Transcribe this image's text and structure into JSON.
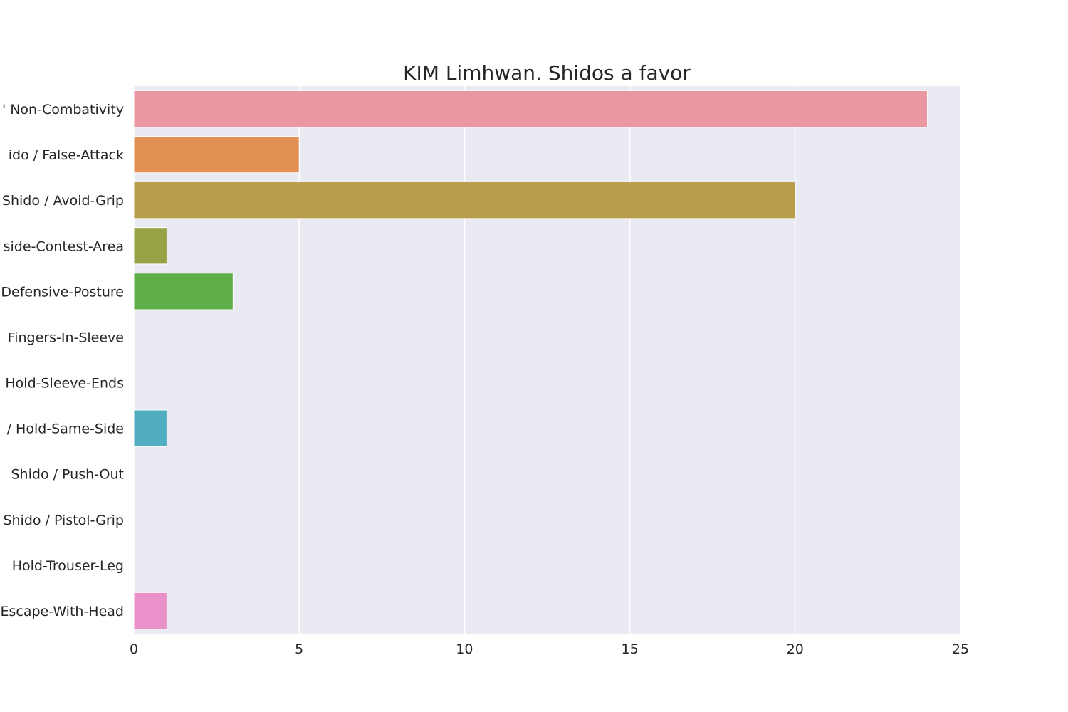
{
  "chart_data": {
    "type": "bar",
    "orientation": "horizontal",
    "title": "KIM Limhwan. Shidos a favor",
    "xlabel": "",
    "ylabel": "",
    "xlim": [
      0,
      25
    ],
    "x_ticks": [
      0,
      5,
      10,
      15,
      20,
      25
    ],
    "grid": true,
    "categories": [
      "Shido / Non-Combativity",
      "Shido / False-Attack",
      "Shido / Avoid-Grip",
      "Shido / Outside-Contest-Area",
      "Shido / Defensive-Posture",
      "Shido / Fingers-In-Sleeve",
      "Shido / Hold-Sleeve-Ends",
      "Shido / Hold-Same-Side",
      "Shido / Push-Out",
      "Shido / Pistol-Grip",
      "Shido / Hold-Trouser-Leg",
      "Shido / Escape-With-Head"
    ],
    "category_labels_visible": [
      "' Non-Combativity",
      "ido / False-Attack",
      "Shido / Avoid-Grip",
      "side-Contest-Area",
      "Defensive-Posture",
      "Fingers-In-Sleeve",
      "Hold-Sleeve-Ends",
      "/ Hold-Same-Side",
      "Shido / Push-Out",
      "Shido / Pistol-Grip",
      "Hold-Trouser-Leg",
      "Escape-With-Head"
    ],
    "values": [
      24,
      5,
      20,
      1,
      3,
      0,
      0,
      1,
      0,
      0,
      0,
      1
    ],
    "colors": [
      "#ea96a3",
      "#e19153",
      "#b89c49",
      "#98a246",
      "#60ae47",
      "#4cb391",
      "#4fb0a6",
      "#51aec1",
      "#5ba8dc",
      "#9a93e4",
      "#d890e4",
      "#e991c8"
    ],
    "background_color": "#eaeaf2",
    "grid_color": "#ffffff",
    "text_color": "#262626"
  }
}
